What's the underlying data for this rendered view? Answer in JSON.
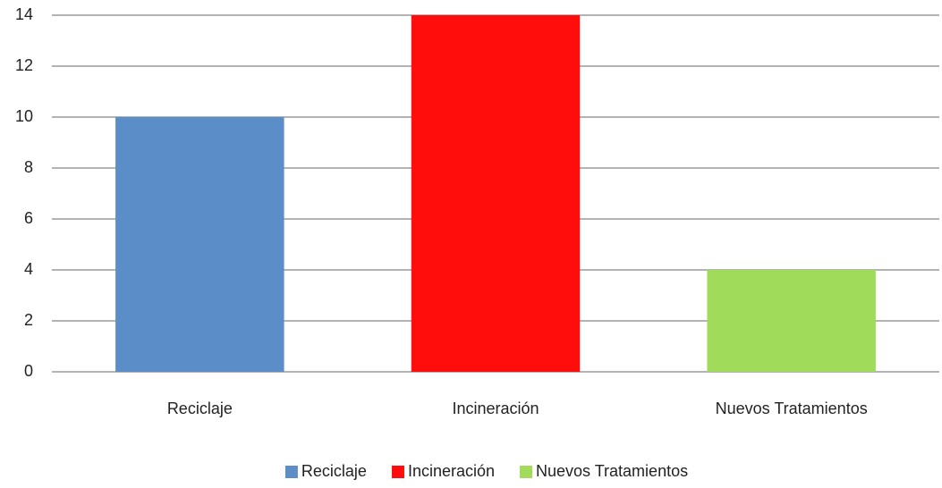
{
  "chart_data": {
    "type": "bar",
    "categories": [
      "Reciclaje",
      "Incineración",
      "Nuevos Tratamientos"
    ],
    "values": [
      10,
      14,
      4
    ],
    "colors": [
      "#5b8dc9",
      "#ff0d0d",
      "#a0dc5a"
    ],
    "ylim": [
      0,
      14
    ],
    "yticks": [
      0,
      2,
      4,
      6,
      8,
      10,
      12,
      14
    ],
    "grid": true,
    "legend": "bottom"
  }
}
